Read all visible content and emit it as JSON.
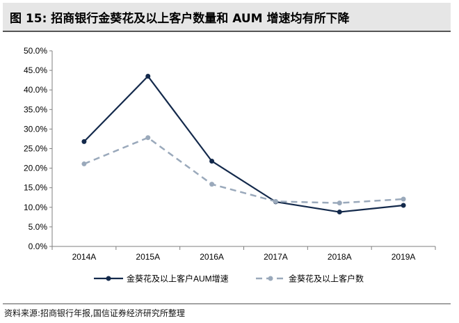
{
  "title": "图 15:  招商银行金葵花及以上客户数量和 AUM 增速均有所下降",
  "source": "资料来源:招商银行年报,国信证券经济研究所整理",
  "colors": {
    "series_aum": "#13294b",
    "series_customers": "#9aa9bb",
    "axis": "#7f7f7f"
  },
  "chart_data": {
    "type": "line",
    "categories": [
      "2014A",
      "2015A",
      "2016A",
      "2017A",
      "2018A",
      "2019A"
    ],
    "y_ticks": [
      "50.0%",
      "45.0%",
      "40.0%",
      "35.0%",
      "30.0%",
      "25.0%",
      "20.0%",
      "15.0%",
      "10.0%",
      "5.0%",
      "0.0%"
    ],
    "ylim": [
      0,
      50
    ],
    "y_unit": "%",
    "grid": false,
    "legend_position": "bottom",
    "series": [
      {
        "name": "金葵花及以上客户AUM增速",
        "style": "solid",
        "values": [
          26.8,
          43.5,
          21.8,
          11.4,
          8.8,
          10.5
        ]
      },
      {
        "name": "金葵花及以上客户数",
        "style": "dashed",
        "values": [
          21.1,
          27.8,
          15.9,
          11.5,
          11.1,
          12.1
        ]
      }
    ]
  }
}
